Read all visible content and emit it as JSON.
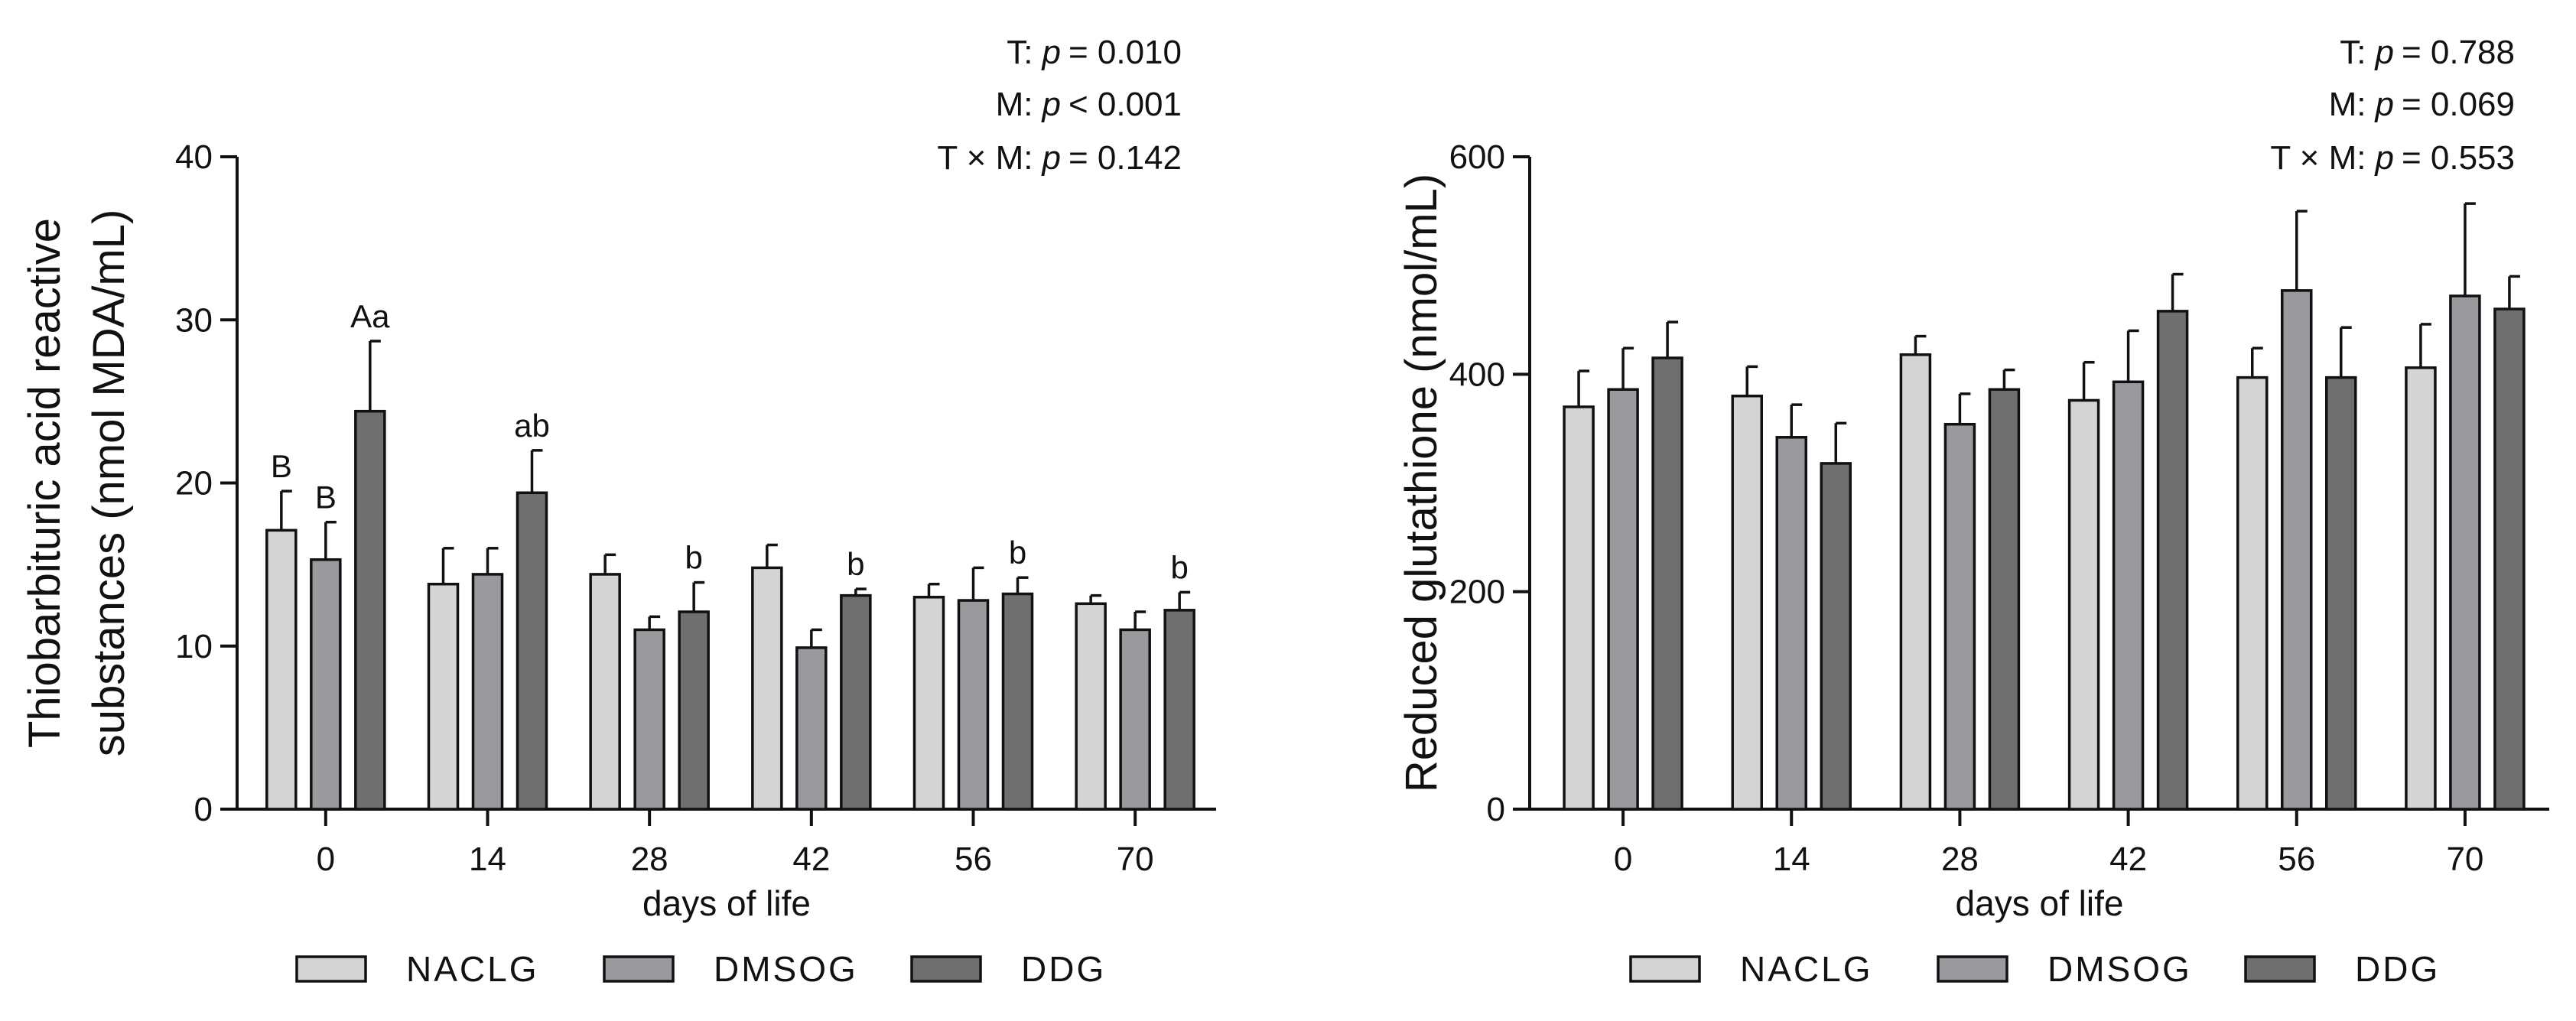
{
  "chart_data": [
    {
      "type": "bar",
      "panel": "left",
      "ylabel_lines": [
        "Thiobarbituric acid reactive",
        "substances (nmol MDA/mL)"
      ],
      "xlabel": "days of life",
      "categories": [
        "0",
        "14",
        "28",
        "42",
        "56",
        "70"
      ],
      "ylim": [
        0,
        40
      ],
      "yticks": [
        0,
        10,
        20,
        30,
        40
      ],
      "series": [
        {
          "name": "NACLG",
          "color": "#d4d4d4",
          "values": [
            17.1,
            13.8,
            14.4,
            14.8,
            13.0,
            12.6
          ],
          "errors": [
            2.4,
            2.2,
            1.2,
            1.4,
            0.8,
            0.5
          ],
          "labels": [
            "B",
            "",
            "",
            "",
            "",
            ""
          ]
        },
        {
          "name": "DMSOG",
          "color": "#9a9a9e",
          "values": [
            15.3,
            14.4,
            11.0,
            9.9,
            12.8,
            11.0
          ],
          "errors": [
            2.3,
            1.6,
            0.8,
            1.1,
            2.0,
            1.1
          ],
          "labels": [
            "B",
            "",
            "",
            "",
            "",
            ""
          ]
        },
        {
          "name": "DDG",
          "color": "#6f6f6f",
          "values": [
            24.4,
            19.4,
            12.1,
            13.1,
            13.2,
            12.2
          ],
          "errors": [
            4.3,
            2.6,
            1.8,
            0.4,
            1.0,
            1.1
          ],
          "labels": [
            "Aa",
            "ab",
            "b",
            "b",
            "b",
            "b"
          ]
        }
      ],
      "stats": [
        {
          "label": "T:",
          "p": "p",
          "value": "= 0.010"
        },
        {
          "label": "M:",
          "p": "p",
          "value": "< 0.001"
        },
        {
          "label": "T × M:",
          "p": "p",
          "value": "= 0.142"
        }
      ],
      "legend": [
        "NACLG",
        "DMSOG",
        "DDG"
      ]
    },
    {
      "type": "bar",
      "panel": "right",
      "ylabel_lines": [
        "Reduced glutathione (nmol/mL)"
      ],
      "xlabel": "days of life",
      "categories": [
        "0",
        "14",
        "28",
        "42",
        "56",
        "70"
      ],
      "ylim": [
        0,
        600
      ],
      "yticks": [
        0,
        200,
        400,
        600
      ],
      "series": [
        {
          "name": "NACLG",
          "color": "#d4d4d4",
          "values": [
            370,
            380,
            418,
            376,
            397,
            406
          ],
          "errors": [
            33,
            27,
            17,
            35,
            27,
            40
          ],
          "labels": [
            "",
            "",
            "",
            "",
            "",
            ""
          ]
        },
        {
          "name": "DMSOG",
          "color": "#9a9a9e",
          "values": [
            386,
            342,
            354,
            393,
            477,
            472
          ],
          "errors": [
            38,
            30,
            28,
            47,
            73,
            85
          ],
          "labels": [
            "",
            "",
            "",
            "",
            "",
            ""
          ]
        },
        {
          "name": "DDG",
          "color": "#6f6f6f",
          "values": [
            415,
            318,
            386,
            458,
            397,
            460
          ],
          "errors": [
            33,
            37,
            18,
            34,
            46,
            30
          ],
          "labels": [
            "",
            "",
            "",
            "",
            "",
            ""
          ]
        }
      ],
      "stats": [
        {
          "label": "T:",
          "p": "p",
          "value": "= 0.788"
        },
        {
          "label": "M:",
          "p": "p",
          "value": "= 0.069"
        },
        {
          "label": "T × M:",
          "p": "p",
          "value": "= 0.553"
        }
      ],
      "legend": [
        "NACLG",
        "DMSOG",
        "DDG"
      ]
    }
  ]
}
